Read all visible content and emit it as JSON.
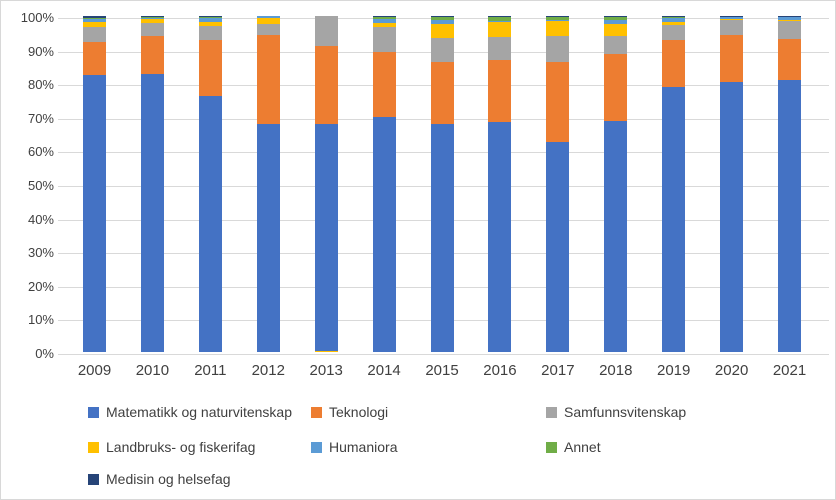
{
  "chart_data": {
    "type": "bar",
    "subtype": "stacked-100-percent-column",
    "title": "",
    "xlabel": "",
    "ylabel": "",
    "categories": [
      "2009",
      "2010",
      "2011",
      "2012",
      "2013",
      "2014",
      "2015",
      "2016",
      "2017",
      "2018",
      "2019",
      "2020",
      "2021"
    ],
    "series": [
      {
        "name": "Matematikk og naturvitenskap",
        "color": "#4472C4",
        "values": [
          82.4,
          82.8,
          76.3,
          68.0,
          67.5,
          69.8,
          67.8,
          68.5,
          62.5,
          68.7,
          79.0,
          80.4,
          80.9
        ]
      },
      {
        "name": "Teknologi",
        "color": "#ED7D31",
        "values": [
          10.0,
          11.4,
          16.6,
          26.3,
          23.2,
          19.5,
          18.5,
          18.5,
          23.7,
          20.0,
          13.8,
          13.9,
          12.4
        ]
      },
      {
        "name": "Samfunnsvitenskap",
        "color": "#A5A5A5",
        "values": [
          4.3,
          3.8,
          4.2,
          3.4,
          8.9,
          7.3,
          7.2,
          6.8,
          7.8,
          5.3,
          4.5,
          4.5,
          5.2
        ]
      },
      {
        "name": "Landbruks- og fiskerifag",
        "color": "#FFC000",
        "values": [
          1.6,
          1.1,
          1.2,
          1.6,
          0.4,
          1.3,
          4.1,
          4.3,
          4.5,
          3.6,
          0.9,
          0.2,
          0.2
        ]
      },
      {
        "name": "Humaniora",
        "color": "#5B9BD5",
        "values": [
          0.8,
          0.4,
          1.0,
          0.7,
          0.0,
          1.2,
          1.2,
          0.5,
          0.4,
          1.2,
          1.3,
          0.7,
          0.9
        ]
      },
      {
        "name": "Annet",
        "color": "#70AD47",
        "values": [
          0.4,
          0.2,
          0.4,
          0.0,
          0.0,
          0.5,
          0.8,
          1.0,
          0.7,
          0.8,
          0.2,
          0.1,
          0.1
        ]
      },
      {
        "name": "Medisin og helsefag",
        "color": "#264478",
        "values": [
          0.5,
          0.3,
          0.3,
          0.0,
          0.0,
          0.4,
          0.4,
          0.4,
          0.4,
          0.4,
          0.3,
          0.2,
          0.3
        ]
      }
    ],
    "yaxis": {
      "min": 0,
      "max": 100,
      "tick_labels": [
        "0%",
        "10%",
        "20%",
        "30%",
        "40%",
        "50%",
        "60%",
        "70%",
        "80%",
        "90%",
        "100%"
      ],
      "tick_values": [
        0,
        10,
        20,
        30,
        40,
        50,
        60,
        70,
        80,
        90,
        100
      ],
      "grid": true
    },
    "anomalies": [
      {
        "category": "2013",
        "series": "Landbruks- og fiskerifag",
        "note": "thin yellow sliver drawn at the bottom of the 2013 stack, below the blue segment"
      }
    ],
    "legend": {
      "position": "bottom",
      "rows": [
        [
          "Matematikk og naturvitenskap",
          "Teknologi",
          "Samfunnsvitenskap"
        ],
        [
          "Landbruks- og fiskerifag",
          "Humaniora",
          "Annet"
        ],
        [
          "Medisin og helsefag"
        ]
      ]
    },
    "colors": {
      "gridline": "#D9D9D9",
      "axis_text": "#404040"
    }
  }
}
